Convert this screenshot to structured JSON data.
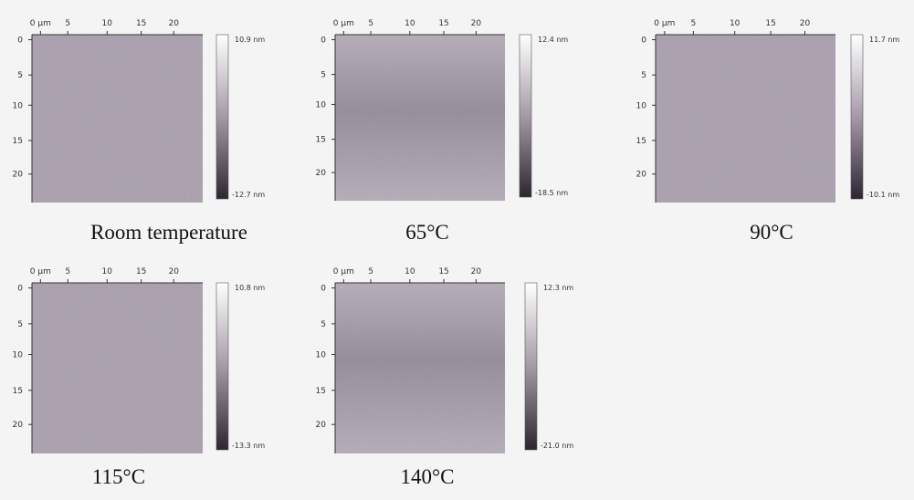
{
  "x_ticks": [
    "0 µm",
    "5",
    "10",
    "15",
    "20"
  ],
  "y_ticks": [
    "0",
    "5",
    "10",
    "15",
    "20"
  ],
  "panels": [
    {
      "caption": "Room temperature",
      "max_label": "10.9 nm",
      "min_label": "-12.7 nm"
    },
    {
      "caption": "65°C",
      "max_label": "12.4 nm",
      "min_label": "-18.5 nm"
    },
    {
      "caption": "90°C",
      "max_label": "11.7 nm",
      "min_label": "-10.1 nm"
    },
    {
      "caption": "115°C",
      "max_label": "10.8 nm",
      "min_label": "-13.3 nm"
    },
    {
      "caption": "140°C",
      "max_label": "12.3 nm",
      "min_label": "-21.0 nm"
    }
  ]
}
